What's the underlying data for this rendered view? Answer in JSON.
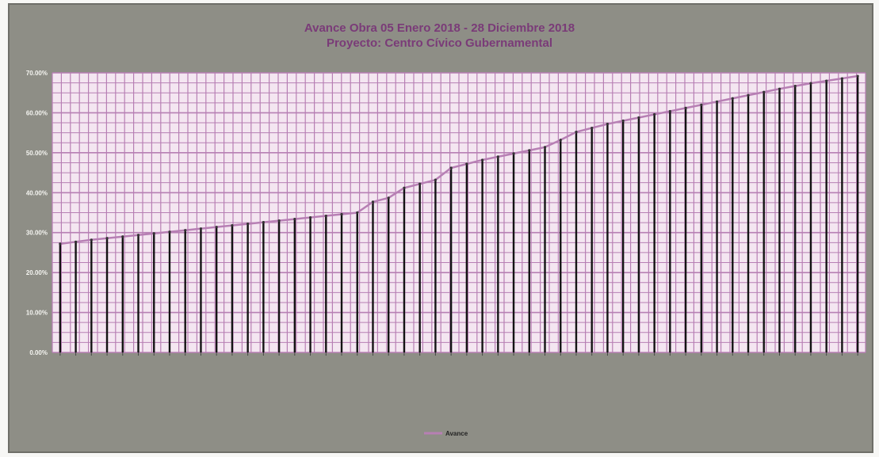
{
  "chart_data": {
    "type": "bar",
    "title": "Avance Obra 05 Enero 2018 - 28 Diciembre 2018",
    "subtitle": "Proyecto: Centro Cívico Gubernamental",
    "ylim": [
      0,
      70
    ],
    "ytick_labels": [
      "0.00%",
      "10.00%",
      "20.00%",
      "30.00%",
      "40.00%",
      "50.00%",
      "60.00%",
      "70.00%"
    ],
    "grid": true,
    "legend_position": "bottom",
    "series": [
      {
        "name": "Avance",
        "values": [
          27.0,
          27.5,
          28.0,
          28.4,
          28.8,
          29.2,
          29.6,
          30.0,
          30.4,
          30.8,
          31.2,
          31.6,
          32.0,
          32.4,
          32.8,
          33.2,
          33.6,
          34.0,
          34.4,
          34.8,
          37.5,
          38.5,
          41.0,
          42.0,
          43.0,
          46.0,
          47.0,
          48.0,
          48.8,
          49.6,
          50.4,
          51.2,
          53.0,
          55.0,
          56.0,
          57.0,
          57.8,
          58.6,
          59.4,
          60.2,
          61.0,
          61.8,
          62.6,
          63.4,
          64.2,
          65.0,
          65.8,
          66.5,
          67.2,
          67.8,
          68.4,
          69.0
        ]
      }
    ],
    "colors": {
      "frame": "#8e8e86",
      "plot_area": "#f4e6f1",
      "grid": "#b77fb4",
      "bar": "#141414",
      "line": "#b77fb4",
      "title": "#7a3b78"
    }
  }
}
